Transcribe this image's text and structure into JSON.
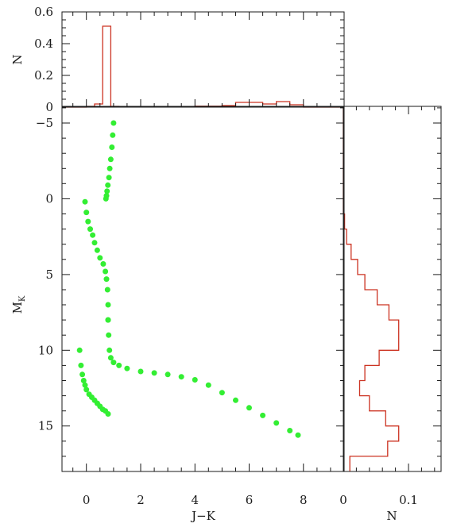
{
  "chart_data": [
    {
      "id": "cmd",
      "type": "scatter",
      "xlabel": "J−K",
      "ylabel": "M",
      "ylabel_sub": "K",
      "xlim": [
        -0.9,
        9.5
      ],
      "ylim": [
        18.0,
        -6.1
      ],
      "y_inverted": true,
      "xticks": [
        0,
        2,
        4,
        6,
        8
      ],
      "yticks": [
        -5,
        0,
        5,
        10,
        15
      ],
      "color": "#33ee33",
      "series": [
        {
          "x": [
            1.0,
            0.97,
            0.94,
            0.9,
            0.86,
            0.83,
            0.79,
            0.76,
            0.74,
            0.72
          ],
          "y": [
            -5.0,
            -4.2,
            -3.4,
            -2.6,
            -2.0,
            -1.4,
            -0.9,
            -0.5,
            -0.2,
            0.0
          ]
        },
        {
          "x": [
            -0.05,
            0.0,
            0.06,
            0.14,
            0.23,
            0.3,
            0.4,
            0.5,
            0.62,
            0.7,
            0.74,
            0.78,
            0.8,
            0.8
          ],
          "y": [
            0.2,
            0.9,
            1.5,
            2.0,
            2.4,
            2.9,
            3.4,
            3.9,
            4.3,
            4.8,
            5.3,
            6.0,
            7.0,
            8.0
          ]
        },
        {
          "x": [
            0.8,
            0.82,
            0.85,
            0.9,
            1.0,
            1.2,
            1.5,
            2.0,
            2.5,
            3.0,
            3.5,
            4.0,
            4.5,
            5.0,
            5.5,
            6.0,
            6.5,
            7.0,
            7.5,
            7.8
          ],
          "y": [
            8.0,
            9.0,
            10.0,
            10.5,
            10.8,
            11.0,
            11.2,
            11.4,
            11.5,
            11.6,
            11.75,
            11.95,
            12.3,
            12.8,
            13.3,
            13.8,
            14.3,
            14.8,
            15.3,
            15.6
          ]
        },
        {
          "x": [
            -0.25,
            -0.2,
            -0.15,
            -0.1,
            -0.05,
            0.0,
            0.1,
            0.2,
            0.3,
            0.4,
            0.5,
            0.6,
            0.7,
            0.8
          ],
          "y": [
            10.0,
            11.0,
            11.6,
            12.0,
            12.3,
            12.6,
            12.9,
            13.1,
            13.3,
            13.5,
            13.7,
            13.9,
            14.0,
            14.2
          ]
        }
      ]
    },
    {
      "id": "hist-top",
      "type": "bar",
      "xlabel": "",
      "ylabel": "N",
      "xlim": [
        -0.9,
        9.5
      ],
      "ylim": [
        0,
        0.6
      ],
      "yticks": [
        0,
        0.2,
        0.4,
        0.6
      ],
      "ytick_labels": [
        "0",
        "0.2",
        "0.4",
        "0.6"
      ],
      "line_color": "#cc3322",
      "bin_edges": [
        -0.9,
        0.0,
        0.3,
        0.6,
        0.9,
        1.2,
        2.0,
        3.0,
        4.0,
        5.0,
        5.5,
        6.0,
        6.5,
        7.0,
        7.5,
        8.0,
        9.5
      ],
      "values": [
        0,
        0.005,
        0.02,
        0.51,
        0.005,
        0.003,
        0.002,
        0.003,
        0.006,
        0.01,
        0.03,
        0.03,
        0.02,
        0.035,
        0.015,
        0
      ]
    },
    {
      "id": "hist-right",
      "type": "bar",
      "orientation": "horizontal",
      "xlabel": "N",
      "ylabel": "",
      "xlim": [
        0,
        0.15
      ],
      "xticks": [
        0,
        0.1
      ],
      "xtick_labels": [
        "0",
        "0.1"
      ],
      "ylim": [
        18.0,
        -6.1
      ],
      "line_color": "#cc3322",
      "bin_edges": [
        -6.1,
        1.0,
        2.0,
        3.0,
        4.0,
        5.0,
        6.0,
        7.0,
        8.0,
        9.0,
        10.0,
        11.0,
        12.0,
        13.0,
        14.0,
        15.0,
        16.0,
        17.0,
        18.0
      ],
      "values": [
        0,
        0.002,
        0.005,
        0.012,
        0.022,
        0.033,
        0.052,
        0.07,
        0.085,
        0.085,
        0.055,
        0.033,
        0.025,
        0.04,
        0.065,
        0.085,
        0.068,
        0.01
      ]
    }
  ]
}
